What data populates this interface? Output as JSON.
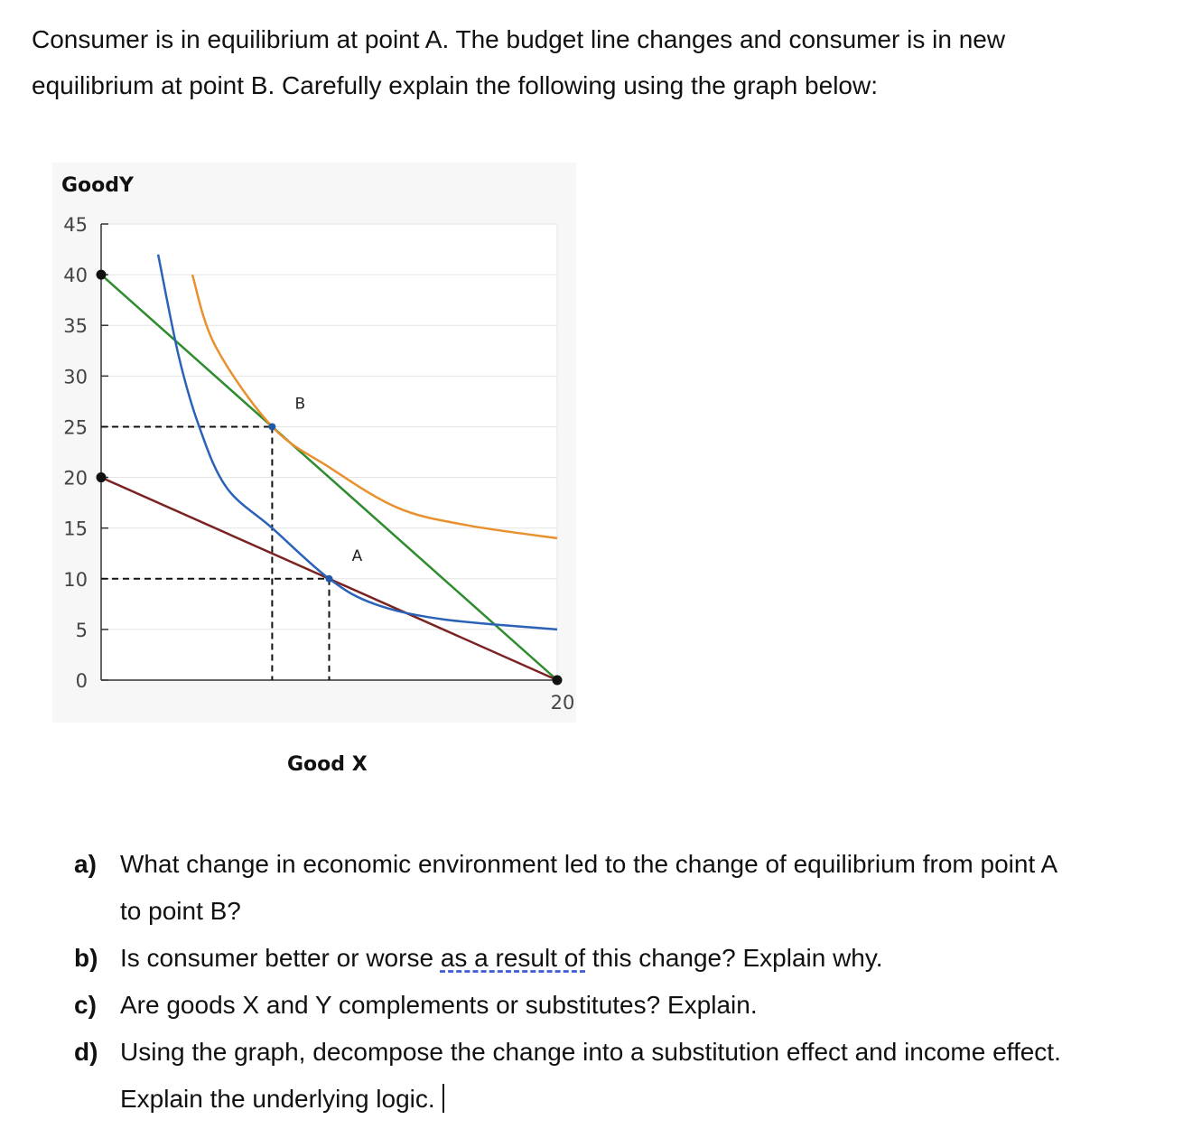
{
  "intro": {
    "line1": "Consumer is in equilibrium at point A. The budget line changes and consumer is in new",
    "line2": "equilibrium at point B. Carefully explain the following using the graph below:"
  },
  "chart_data": {
    "type": "line",
    "ylabel": "GoodY",
    "xlabel": "Good X",
    "ylim": [
      0,
      45
    ],
    "xlim": [
      0,
      20
    ],
    "y_ticks": [
      "45",
      "40",
      "35",
      "30",
      "25",
      "20",
      "15",
      "10",
      "5",
      "0"
    ],
    "x_ticks": [
      "20"
    ],
    "grid": true,
    "series": [
      {
        "color": "#2e8b2e",
        "points": [
          [
            0,
            40
          ],
          [
            20,
            0
          ]
        ]
      },
      {
        "color": "#7b2323",
        "points": [
          [
            0,
            20
          ],
          [
            20,
            0
          ]
        ]
      },
      {
        "color": "#2a62b8",
        "points": [
          [
            2.5,
            42
          ],
          [
            3.4,
            32
          ],
          [
            4.3,
            25
          ],
          [
            5.5,
            19
          ],
          [
            7.5,
            15
          ],
          [
            10,
            10
          ],
          [
            12,
            7.5
          ],
          [
            15,
            6
          ],
          [
            20,
            5
          ]
        ]
      },
      {
        "color": "#e8912e",
        "points": [
          [
            4,
            40
          ],
          [
            5,
            33
          ],
          [
            7.5,
            25
          ],
          [
            10,
            21
          ],
          [
            13,
            17
          ],
          [
            16,
            15.3
          ],
          [
            20,
            14
          ]
        ]
      }
    ],
    "points": [
      {
        "label": "B",
        "x": 7.5,
        "y": 25
      },
      {
        "label": "A",
        "x": 10,
        "y": 10
      }
    ],
    "endpoints": [
      [
        0,
        40
      ],
      [
        0,
        20
      ],
      [
        20,
        0
      ]
    ],
    "guides": [
      {
        "from": [
          0,
          25
        ],
        "to": [
          7.5,
          25
        ]
      },
      {
        "from": [
          7.5,
          25
        ],
        "to": [
          7.5,
          0
        ]
      },
      {
        "from": [
          0,
          10
        ],
        "to": [
          10,
          10
        ]
      },
      {
        "from": [
          10,
          10
        ],
        "to": [
          10,
          0
        ]
      }
    ],
    "colors": {
      "axis": "#333333",
      "grid": "#e4e4e4",
      "guide": "#111111",
      "dot": "#111111"
    }
  },
  "questions": [
    {
      "letter": "a)",
      "lines": [
        "What change in economic environment led to the change of equilibrium from point A",
        "to point B?"
      ]
    },
    {
      "letter": "b)",
      "pre": "Is consumer better or worse ",
      "underlined": "as a result of",
      "post": " this change? Explain why."
    },
    {
      "letter": "c)",
      "lines": [
        "Are goods X and Y complements or substitutes? Explain."
      ]
    },
    {
      "letter": "d)",
      "lines": [
        "Using the graph, decompose the change into a substitution effect and income effect.",
        "Explain the underlying logic."
      ]
    }
  ]
}
